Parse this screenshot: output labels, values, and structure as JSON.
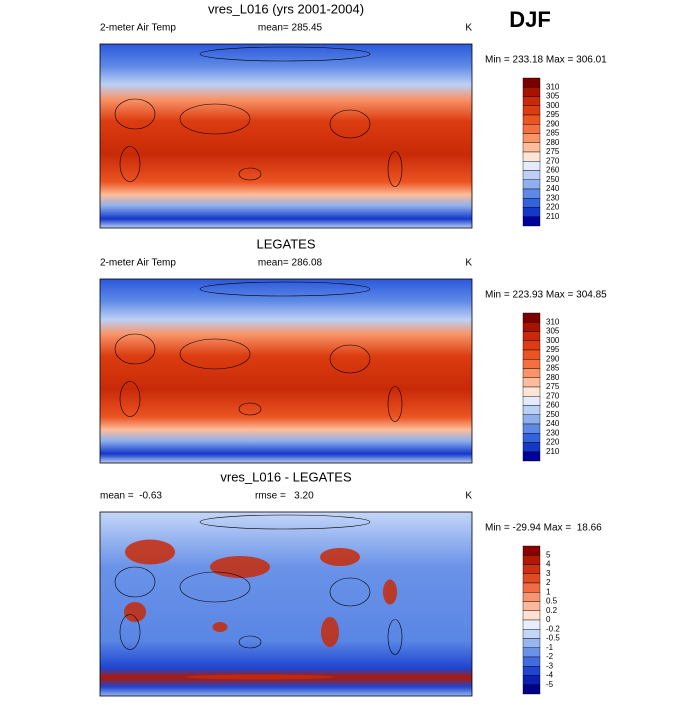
{
  "figure_label": "DJF",
  "panels": [
    {
      "title": "vres_L016 (yrs 2001-2004)",
      "left_label": "2-meter Air Temp",
      "center_label": "mean= 285.45",
      "right_label": "K",
      "min_max": "Min = 233.18 Max = 306.01",
      "colorbar": {
        "labels": [
          "310",
          "305",
          "300",
          "295",
          "290",
          "285",
          "280",
          "275",
          "270",
          "260",
          "250",
          "240",
          "230",
          "220",
          "210"
        ],
        "colors": [
          "#7a0000",
          "#a81200",
          "#c82a08",
          "#dc3c10",
          "#ec5422",
          "#f47040",
          "#f89468",
          "#fbbd9c",
          "#fde4d4",
          "#e4ecfb",
          "#bcd0f6",
          "#8eb0ee",
          "#5e8ae6",
          "#3462dc",
          "#1438c8",
          "#00009a"
        ]
      }
    },
    {
      "title": "LEGATES",
      "left_label": "2-meter Air Temp",
      "center_label": "mean= 286.08",
      "right_label": "K",
      "min_max": "Min = 223.93 Max = 304.85",
      "colorbar": {
        "labels": [
          "310",
          "305",
          "300",
          "295",
          "290",
          "285",
          "280",
          "275",
          "270",
          "260",
          "250",
          "240",
          "230",
          "220",
          "210"
        ],
        "colors": [
          "#7a0000",
          "#a81200",
          "#c82a08",
          "#dc3c10",
          "#ec5422",
          "#f47040",
          "#f89468",
          "#fbbd9c",
          "#fde4d4",
          "#e4ecfb",
          "#bcd0f6",
          "#8eb0ee",
          "#5e8ae6",
          "#3462dc",
          "#1438c8",
          "#00009a"
        ]
      }
    },
    {
      "title": "vres_L016 - LEGATES",
      "left_label": "mean =  -0.63",
      "center_label": "rmse =   3.20",
      "right_label": "K",
      "min_max": "Min = -29.94 Max =  18.66",
      "colorbar": {
        "labels": [
          "5",
          "4",
          "3",
          "2",
          "1",
          "0.5",
          "0.2",
          "0",
          "-0.2",
          "-0.5",
          "-1",
          "-2",
          "-3",
          "-4",
          "-5"
        ],
        "colors": [
          "#8a0000",
          "#b01800",
          "#cc3010",
          "#e04c22",
          "#f06c44",
          "#f89470",
          "#fbb89a",
          "#fde0d0",
          "#e6eefc",
          "#c4d6f8",
          "#96b6f0",
          "#6a92e8",
          "#406ce0",
          "#1e44d0",
          "#0a20b0",
          "#000088"
        ]
      }
    }
  ]
}
